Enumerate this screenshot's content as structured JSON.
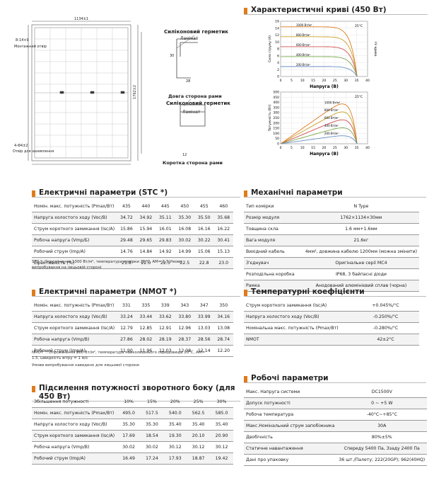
{
  "drawing": {
    "sealant_1": "Силіконовий герметик",
    "laminate_1": "Ламінат",
    "long_frame": "Довга сторона рами",
    "sealant_2": "Силіконовий герметик",
    "laminate_2": "Ламінат",
    "short_frame": "Коротка сторона рами",
    "mount_hole": "Монтажний отвір",
    "ground_hole": "Отвір для заземлення",
    "width": "1134±1",
    "height": "1762±2",
    "dim_28": "28",
    "dim_30": "30",
    "dim_12": "12",
    "hole_size": "8-14×9",
    "ground_size": "4-Φ4±2"
  },
  "curves": {
    "title": "Характеристичні криві (450 Вт)",
    "iv": {
      "y_label": "Сила струму (A)",
      "x_label": "Напруга (В)",
      "side_label": "I-V крива",
      "temp": "25°C",
      "irradiance": [
        "1000 Вт/м²",
        "800 Вт/м²",
        "600 Вт/м²",
        "400 Вт/м²",
        "200 Вт/м²"
      ],
      "xticks": [
        0,
        5,
        10,
        15,
        20,
        25,
        30,
        35,
        40
      ],
      "yticks": [
        0,
        2,
        4,
        6,
        8,
        10,
        12,
        14,
        16
      ]
    },
    "pv": {
      "y_label": "Потужність (Вт)",
      "x_label": "Напруга (В)",
      "temp": "25°C",
      "irradiance": [
        "1000 Вт/м²",
        "800 Вт/м²",
        "600 Вт/м²",
        "400 Вт/м²",
        "200 Вт/м²"
      ],
      "xticks": [
        0,
        5,
        10,
        15,
        20,
        25,
        30,
        35,
        40
      ],
      "yticks": [
        0,
        50,
        100,
        150,
        200,
        250,
        300,
        350,
        400,
        450,
        500
      ]
    }
  },
  "stc": {
    "title": "Електричні параметри (STC *)",
    "rows": [
      [
        "Номін. макс. потужність (Pmax/Вт)",
        "435",
        "440",
        "445",
        "450",
        "455",
        "460"
      ],
      [
        "Напруга холостого ходу (Voc/B)",
        "34.72",
        "34.92",
        "35.11",
        "35.30",
        "35.50",
        "35.68"
      ],
      [
        "Струм короткого замикання (Isc/A)",
        "15.86",
        "15.94",
        "16.01",
        "16.08",
        "16.16",
        "16.22"
      ],
      [
        "Робоча напруга (Vmp/Б)",
        "29.48",
        "29.65",
        "29.83",
        "30.02",
        "30.22",
        "30.41"
      ],
      [
        "Робочий струм (Imp/A)",
        "14.76",
        "14.84",
        "14.92",
        "14.99",
        "15.06",
        "15.13"
      ],
      [
        "Ефективність (%)",
        "21.8",
        "22.0",
        "22.3",
        "22.5",
        "22.8",
        "23.0"
      ]
    ],
    "note": "STC *: Опромінення 1000 Вт/м², температура комірки 25°C, AM= 1.5 Умови випробування на лицьовій стороні"
  },
  "nmot": {
    "title": "Електричні параметри (NMOT *)",
    "rows": [
      [
        "Номін. макс. потужність (Pmax/Вт)",
        "331",
        "335",
        "339",
        "343",
        "347",
        "350"
      ],
      [
        "Напруга холостого ходу (Voc/B)",
        "33.24",
        "33.44",
        "33.62",
        "33.80",
        "33.99",
        "34.16"
      ],
      [
        "Струм короткого замикання (Isc/A)",
        "12.79",
        "12.85",
        "12.91",
        "12.96",
        "13.03",
        "13.08"
      ],
      [
        "Робоча напруга (Vmp/B)",
        "27.86",
        "28.02",
        "28.19",
        "28.37",
        "28.56",
        "28.74"
      ],
      [
        "Робочий струм (Imp/A)",
        "11.90",
        "11.96",
        "12.03",
        "12.08",
        "12.14",
        "12.20"
      ]
    ],
    "note": "NMOT *: Опромінення 800 Вт/м², температура навколишнього середовища 20°C, AM= 1.5, швидкість вітру = 1 м/с",
    "note2": "Умови випробування наведено для лицьової сторони"
  },
  "bifacial": {
    "title": "Підсилення потужності зворотного боку (для 450 Вт)",
    "rows": [
      [
        "Збільшення потужності",
        "10%",
        "15%",
        "20%",
        "25%",
        "30%"
      ],
      [
        "Номін. макс. потужність (Pmax/Вт)",
        "495.0",
        "517.5",
        "540.0",
        "562.5",
        "585.0"
      ],
      [
        "Напруга холостого ходу (Voc/B)",
        "35.30",
        "35.30",
        "35.40",
        "35.40",
        "35.40"
      ],
      [
        "Струм короткого замикання (Isc/A)",
        "17.69",
        "18.54",
        "19.30",
        "20.10",
        "20.90"
      ],
      [
        "Робоча напруга (Vmp/B)",
        "30.02",
        "30.02",
        "30.12",
        "30.12",
        "30.12"
      ],
      [
        "Робочий струм (Imp/A)",
        "16.49",
        "17.24",
        "17.93",
        "18.87",
        "19.42"
      ]
    ]
  },
  "mechanical": {
    "title": "Механічні параметри",
    "rows": [
      [
        "Тип комірки",
        "N Type"
      ],
      [
        "Розмір модуля",
        "1762×1134×30мм"
      ],
      [
        "Товщина скла",
        "1.6 мм+1.6мм"
      ],
      [
        "Вага модуля",
        "21.6кг"
      ],
      [
        "Вихідний кабель",
        "4мм², довжина кабелю 1200мм (можна змінити)"
      ],
      [
        "З'єднувач",
        "Оригінальне серії MC4"
      ],
      [
        "Розподільна коробка",
        "IP68, 3 байпасні діоди"
      ],
      [
        "Рамка",
        "Анодований алюмінієвий сплав (чорна)"
      ]
    ]
  },
  "temperature": {
    "title": "Температурні коефіцієнти",
    "rows": [
      [
        "Струм короткого замикання (Isc/A)",
        "+0.045%/°C"
      ],
      [
        "Напруга холостого ходу (Voc/B)",
        "-0.250%/°C"
      ],
      [
        "Номінальна макс. потужність (Pmax/Вт)",
        "-0.280%/°C"
      ],
      [
        "NMOT",
        "42±2°C"
      ]
    ]
  },
  "operating": {
    "title": "Робочі параметри",
    "rows": [
      [
        "Макс. Напруга системи",
        "DC1500V"
      ],
      [
        "Допуск потужності",
        "0 ~ +5 W"
      ],
      [
        "Робоча температура",
        "-40°C~+85°C"
      ],
      [
        "Макс.Номінальний струм запобіжника",
        "30A"
      ],
      [
        "Двобічність",
        "80%±5%"
      ],
      [
        "Статичне навантаження",
        "Спереду 5400 Па, Ззаду 2400 Па"
      ],
      [
        "Дані про упаковку",
        "36 шт./Палету; 222(20GP); 962(40HQ)"
      ]
    ]
  }
}
